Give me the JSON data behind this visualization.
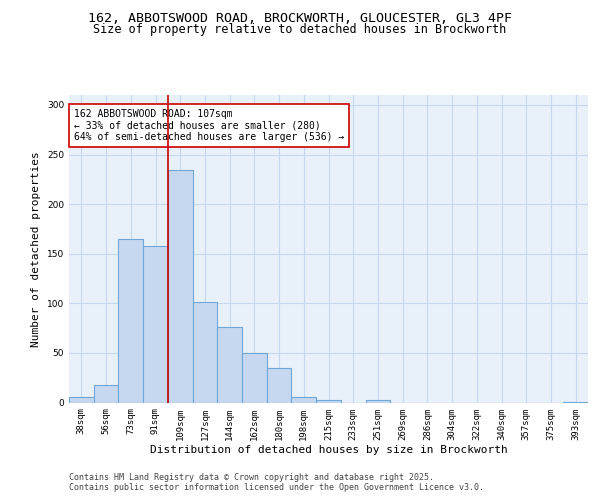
{
  "title_line1": "162, ABBOTSWOOD ROAD, BROCKWORTH, GLOUCESTER, GL3 4PF",
  "title_line2": "Size of property relative to detached houses in Brockworth",
  "xlabel": "Distribution of detached houses by size in Brockworth",
  "ylabel": "Number of detached properties",
  "bar_labels": [
    "38sqm",
    "56sqm",
    "73sqm",
    "91sqm",
    "109sqm",
    "127sqm",
    "144sqm",
    "162sqm",
    "180sqm",
    "198sqm",
    "215sqm",
    "233sqm",
    "251sqm",
    "269sqm",
    "286sqm",
    "304sqm",
    "322sqm",
    "340sqm",
    "357sqm",
    "375sqm",
    "393sqm"
  ],
  "bar_values": [
    6,
    18,
    165,
    158,
    234,
    101,
    76,
    50,
    35,
    6,
    3,
    0,
    3,
    0,
    0,
    0,
    0,
    0,
    0,
    0,
    1
  ],
  "bar_color": "#c5d8f0",
  "bar_edge_color": "#6fa8d8",
  "grid_color": "#c5d8f0",
  "bg_color": "#e8f0fa",
  "vline_color": "#cc0000",
  "annotation_text": "162 ABBOTSWOOD ROAD: 107sqm\n← 33% of detached houses are smaller (280)\n64% of semi-detached houses are larger (536) →",
  "annotation_box_color": "#ffffff",
  "annotation_box_edge": "#cc0000",
  "ylim": [
    0,
    310
  ],
  "yticks": [
    0,
    50,
    100,
    150,
    200,
    250,
    300
  ],
  "footer_text": "Contains HM Land Registry data © Crown copyright and database right 2025.\nContains public sector information licensed under the Open Government Licence v3.0.",
  "title_fontsize": 9.5,
  "subtitle_fontsize": 8.5,
  "axis_label_fontsize": 8,
  "tick_fontsize": 6.5,
  "annotation_fontsize": 7,
  "footer_fontsize": 6
}
